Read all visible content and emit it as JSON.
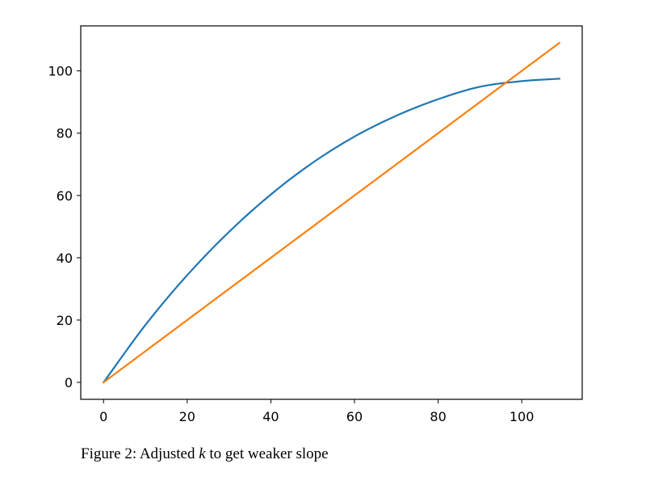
{
  "chart_data": {
    "type": "line",
    "title": "",
    "xlabel": "",
    "ylabel": "",
    "xlim": [
      -5.45,
      114.45
    ],
    "ylim": [
      -5.45,
      114.45
    ],
    "x_ticks": [
      0,
      20,
      40,
      60,
      80,
      100
    ],
    "y_ticks": [
      0,
      20,
      40,
      60,
      80,
      100
    ],
    "x_tick_labels": [
      "0",
      "20",
      "40",
      "60",
      "80",
      "100"
    ],
    "y_tick_labels": [
      "0",
      "20",
      "40",
      "60",
      "80",
      "100"
    ],
    "grid": false,
    "legend": "none",
    "series": [
      {
        "color": "#1f77b4",
        "x": [
          0,
          10,
          20,
          30,
          40,
          50,
          60,
          70,
          80,
          90,
          100,
          109
        ],
        "y": [
          0,
          18.4,
          34.4,
          48.3,
          60.3,
          70.5,
          78.9,
          85.6,
          90.9,
          94.9,
          96.7,
          97.5
        ]
      },
      {
        "color": "#ff7f0e",
        "x": [
          0,
          109
        ],
        "y": [
          0,
          109
        ]
      }
    ]
  },
  "caption": {
    "prefix": "Figure 2: Adjusted ",
    "variable": "k",
    "suffix": " to get weaker slope"
  }
}
